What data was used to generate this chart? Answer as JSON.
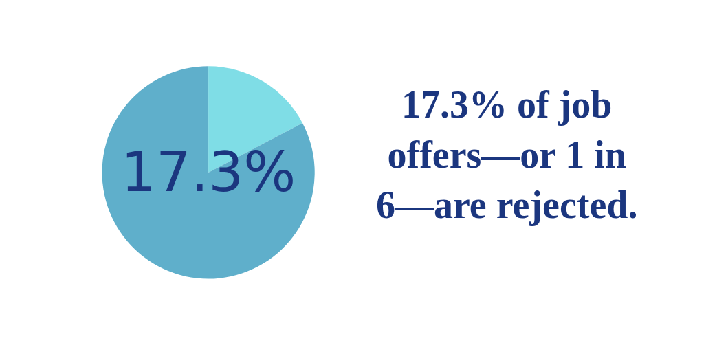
{
  "chart_data": {
    "type": "pie",
    "title": "17.3% of job offers—or 1 in 6—are rejected.",
    "categories": [
      null,
      null
    ],
    "values": [
      17.3,
      82.7
    ],
    "colors": [
      "#7fdde6",
      "#5fafcb"
    ],
    "value_labels": [
      "17.3%",
      null
    ],
    "legend": false
  }
}
